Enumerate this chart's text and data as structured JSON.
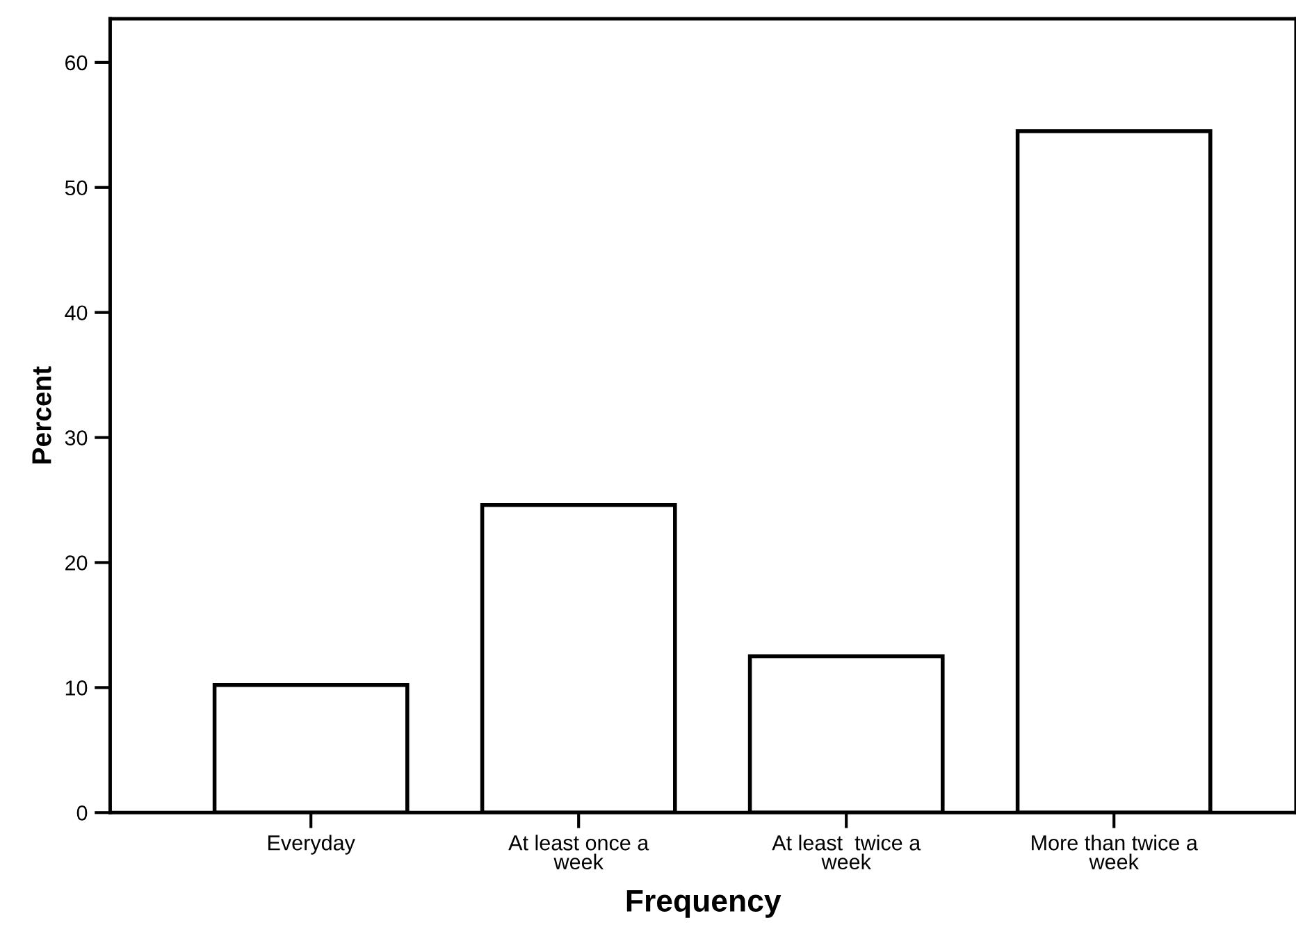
{
  "chart_data": {
    "type": "bar",
    "xlabel": "Frequency",
    "ylabel": "Percent",
    "categories": [
      "Everyday",
      "At least once a\nweek",
      "At least  twice a\nweek",
      "More than twice a\nweek"
    ],
    "values": [
      10.2,
      24.6,
      12.5,
      54.5
    ],
    "color": "#ffffff",
    "ylim": [
      0,
      63.5
    ],
    "yticks": [
      0,
      10,
      20,
      30,
      40,
      50,
      60
    ],
    "grid": false,
    "legend": false
  }
}
